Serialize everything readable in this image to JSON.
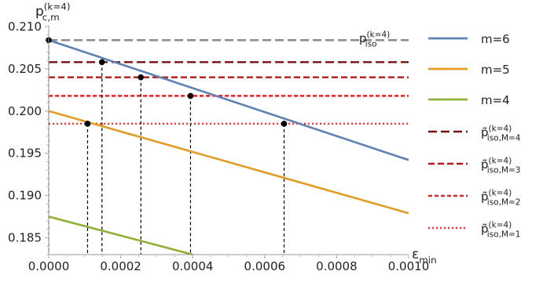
{
  "chart_data": {
    "type": "line",
    "y_axis_label": {
      "base": "p",
      "sup": "(k=4)",
      "sub": "c,m"
    },
    "x_axis_label": {
      "base": "ε",
      "sub": "min"
    },
    "xlim": [
      0,
      0.001
    ],
    "ylim": [
      0.183,
      0.21
    ],
    "x_ticks": [
      "0.0000",
      "0.0002",
      "0.0004",
      "0.0006",
      "0.0008",
      "0.0010"
    ],
    "y_ticks": [
      "0.185",
      "0.190",
      "0.195",
      "0.200",
      "0.205",
      "0.210"
    ],
    "series": [
      {
        "name": "m=6",
        "color": "#5e81b5",
        "x": [
          0,
          0.001
        ],
        "y": [
          0.2084,
          0.1942
        ]
      },
      {
        "name": "m=5",
        "color": "#e19c24",
        "x": [
          0,
          0.001
        ],
        "y": [
          0.2,
          0.1879
        ]
      },
      {
        "name": "m=4",
        "color": "#8fb032",
        "x": [
          0,
          0.0004
        ],
        "y": [
          0.1875,
          0.183
        ]
      }
    ],
    "horizontal_lines": [
      {
        "name": "p_iso^(k=4)",
        "label": {
          "base": "p",
          "sup": "(k=4)",
          "sub": "iso"
        },
        "y": 0.2084,
        "color": "#8a8a8a",
        "dash": "long"
      },
      {
        "name": "p̃_iso,M=4^(k=4)",
        "label": {
          "base": "p̃",
          "sup": "(k=4)",
          "sub": "iso,M=4"
        },
        "y": 0.2058,
        "color": "#7a0f0f",
        "dash": "long"
      },
      {
        "name": "p̃_iso,M=3^(k=4)",
        "label": {
          "base": "p̃",
          "sup": "(k=4)",
          "sub": "iso,M=3"
        },
        "y": 0.204,
        "color": "#b51a1a",
        "dash": "medium"
      },
      {
        "name": "p̃_iso,M=2^(k=4)",
        "label": {
          "base": "p̃",
          "sup": "(k=4)",
          "sub": "iso,M=2"
        },
        "y": 0.2018,
        "color": "#e0202a",
        "dash": "short"
      },
      {
        "name": "p̃_iso,M=1^(k=4)",
        "label": {
          "base": "p̃",
          "sup": "(k=4)",
          "sub": "iso,M=1"
        },
        "y": 0.1985,
        "color": "#ff2a2a",
        "dash": "dotted"
      }
    ],
    "intersection_points": [
      {
        "x": 0,
        "y": 0.2084
      },
      {
        "x": 0.000148,
        "y": 0.2058
      },
      {
        "x": 0.000256,
        "y": 0.204
      },
      {
        "x": 0.000394,
        "y": 0.2018
      },
      {
        "x": 0.000654,
        "y": 0.1985
      },
      {
        "x": 0.000108,
        "y": 0.1985
      }
    ],
    "legend": {
      "placement": "right"
    },
    "grid": false
  }
}
